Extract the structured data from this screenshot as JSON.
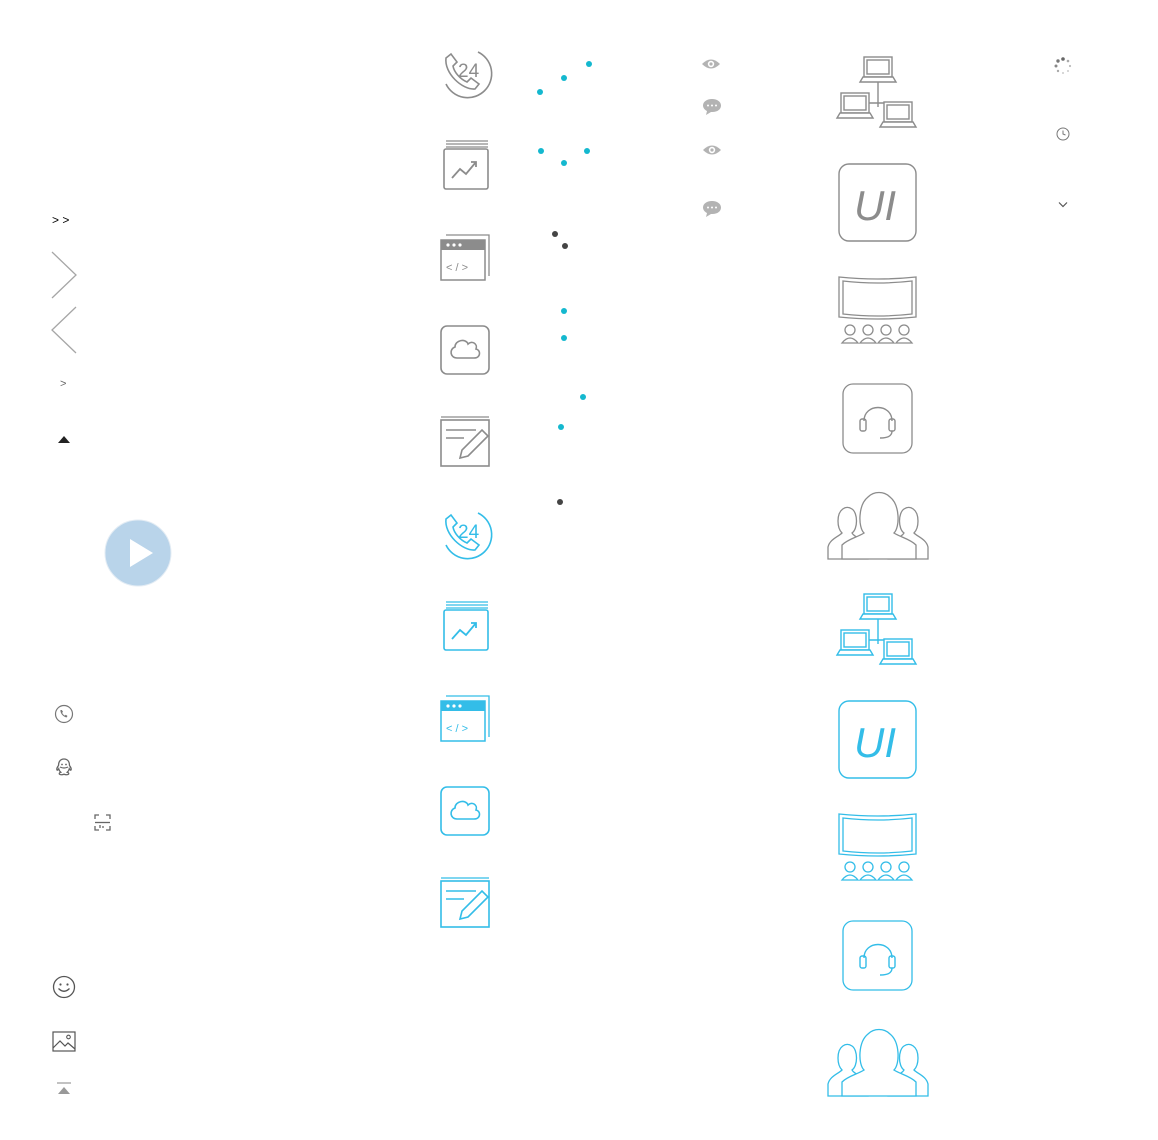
{
  "left_column": {
    "double_arrow_text": "> >",
    "small_arrow_text": ">"
  },
  "icon_labels": {
    "phone_24_text": "24",
    "code_text": "< / >",
    "ui_text": "UI"
  },
  "colors": {
    "gray_icon": "#8c8c8c",
    "blue_icon": "#33bde8",
    "dot_cyan": "#14b8cf",
    "dot_dark": "#444444",
    "play_circle": "#b9d4ea"
  },
  "icons": [
    "double-chevron",
    "chevron-right",
    "chevron-left",
    "small-chevron",
    "caret-up",
    "play-button",
    "phone",
    "qq",
    "scan",
    "emoji",
    "image",
    "back-to-top",
    "phone-24",
    "chart-book",
    "code-window",
    "cloud",
    "edit",
    "eye",
    "comment",
    "network",
    "ui-badge",
    "presentation",
    "headset",
    "group",
    "spinner",
    "clock",
    "chevron-down"
  ]
}
